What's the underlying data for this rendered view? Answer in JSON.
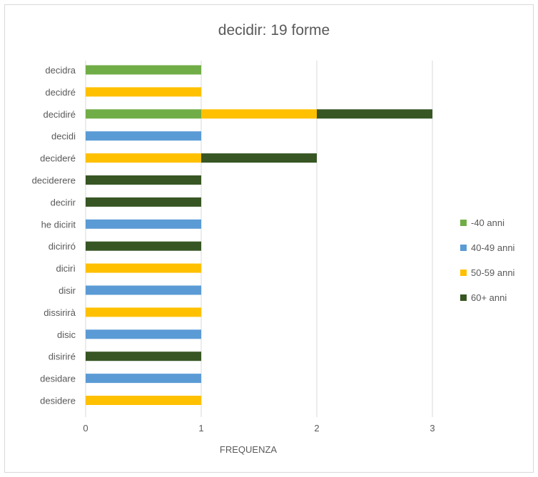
{
  "chart_data": {
    "type": "bar",
    "orientation": "horizontal",
    "stacked": true,
    "title": "decidir: 19 forme",
    "xlabel": "FREQUENZA",
    "ylabel": "",
    "xlim": [
      0,
      3
    ],
    "xticks": [
      0,
      1,
      2,
      3
    ],
    "grid": "vertical",
    "legend_position": "right",
    "categories": [
      "decidra",
      "decidré",
      "decidiré",
      "decidi",
      "decideré",
      "deciderere",
      "decirir",
      "he dicirit",
      "diciriró",
      "dicirì",
      "disir",
      "dissirirà",
      "disic",
      "disiriré",
      "desidare",
      "desidere"
    ],
    "series": [
      {
        "name": "-40 anni",
        "color": "#70ad47",
        "values": [
          1,
          0,
          1,
          0,
          0,
          0,
          0,
          0,
          0,
          0,
          0,
          0,
          0,
          0,
          0,
          0
        ]
      },
      {
        "name": "40-49 anni",
        "color": "#5b9bd5",
        "values": [
          0,
          0,
          0,
          1,
          0,
          0,
          0,
          1,
          0,
          0,
          1,
          0,
          1,
          0,
          1,
          0
        ]
      },
      {
        "name": "50-59 anni",
        "color": "#ffc000",
        "values": [
          0,
          1,
          1,
          0,
          1,
          0,
          0,
          0,
          0,
          1,
          0,
          1,
          0,
          0,
          0,
          1
        ]
      },
      {
        "name": "60+ anni",
        "color": "#375623",
        "values": [
          0,
          0,
          1,
          0,
          1,
          1,
          1,
          0,
          1,
          0,
          0,
          0,
          0,
          1,
          0,
          0
        ]
      }
    ]
  }
}
